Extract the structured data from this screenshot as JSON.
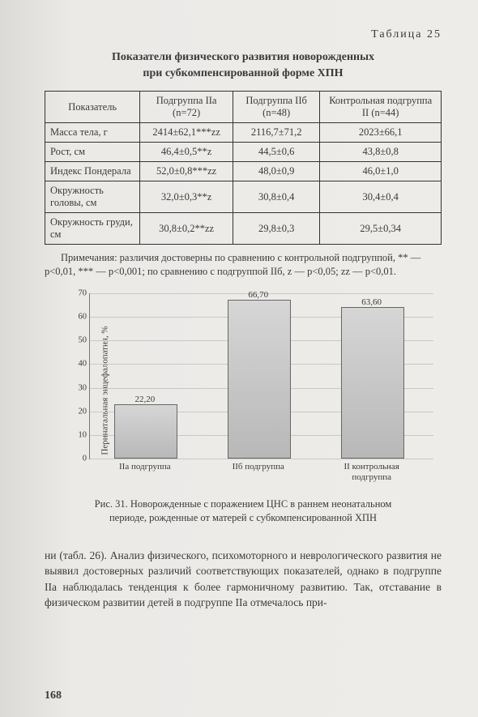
{
  "table_number_label": "Таблица  25",
  "table_title_l1": "Показатели физического развития новорожденных",
  "table_title_l2": "при субкомпенсированной форме ХПН",
  "table": {
    "col_headers": [
      "Показатель",
      "Подгруппа IIа (n=72)",
      "Подгруппа IIб (n=48)",
      "Контрольная подгруппа II (n=44)"
    ],
    "rows": [
      [
        "Масса тела, г",
        "2414±62,1***zz",
        "2116,7±71,2",
        "2023±66,1"
      ],
      [
        "Рост, см",
        "46,4±0,5**z",
        "44,5±0,6",
        "43,8±0,8"
      ],
      [
        "Индекс Пондерала",
        "52,0±0,8***zz",
        "48,0±0,9",
        "46,0±1,0"
      ],
      [
        "Окружность головы, см",
        "32,0±0,3**z",
        "30,8±0,4",
        "30,4±0,4"
      ],
      [
        "Окружность груди, см",
        "30,8±0,2**zz",
        "29,8±0,3",
        "29,5±0,34"
      ]
    ]
  },
  "notes": "Примечания: различия достоверны по сравнению с контрольной подгруппой, ** — p<0,01, *** — p<0,001; по сравнению с подгруппой IIб, z — p<0,05; zz — p<0,01.",
  "chart": {
    "type": "bar",
    "ylabel": "Перинатальная энцефалопатия, %",
    "ylim": [
      0,
      70
    ],
    "ytick_step": 10,
    "categories": [
      "IIа подгруппа",
      "IIб подгруппа",
      "II контрольная подгруппа"
    ],
    "values": [
      22.2,
      66.7,
      63.6
    ],
    "value_labels": [
      "22,20",
      "66,70",
      "63,60"
    ],
    "bar_color": "#b8b8b8",
    "grid_color": "#c8c8c8",
    "bar_width_pct": 18,
    "bar_positions_pct": [
      16,
      49,
      82
    ]
  },
  "fig_caption_l1": "Рис. 31. Новорожденные с поражением ЦНС в раннем неонатальном",
  "fig_caption_l2": "периоде, рожденные от матерей с субкомпенсированной ХПН",
  "body": "ни (табл. 26). Анализ физического, психомоторного и невро­логического развития не выявил достоверных различий соот­ветствующих показателей, однако в подгруппе IIа наблюдалась тенденция к более гармоничному развитию. Так, отставание в физическом развитии детей в подгруппе IIа отмечалось при-",
  "page_number": "168"
}
